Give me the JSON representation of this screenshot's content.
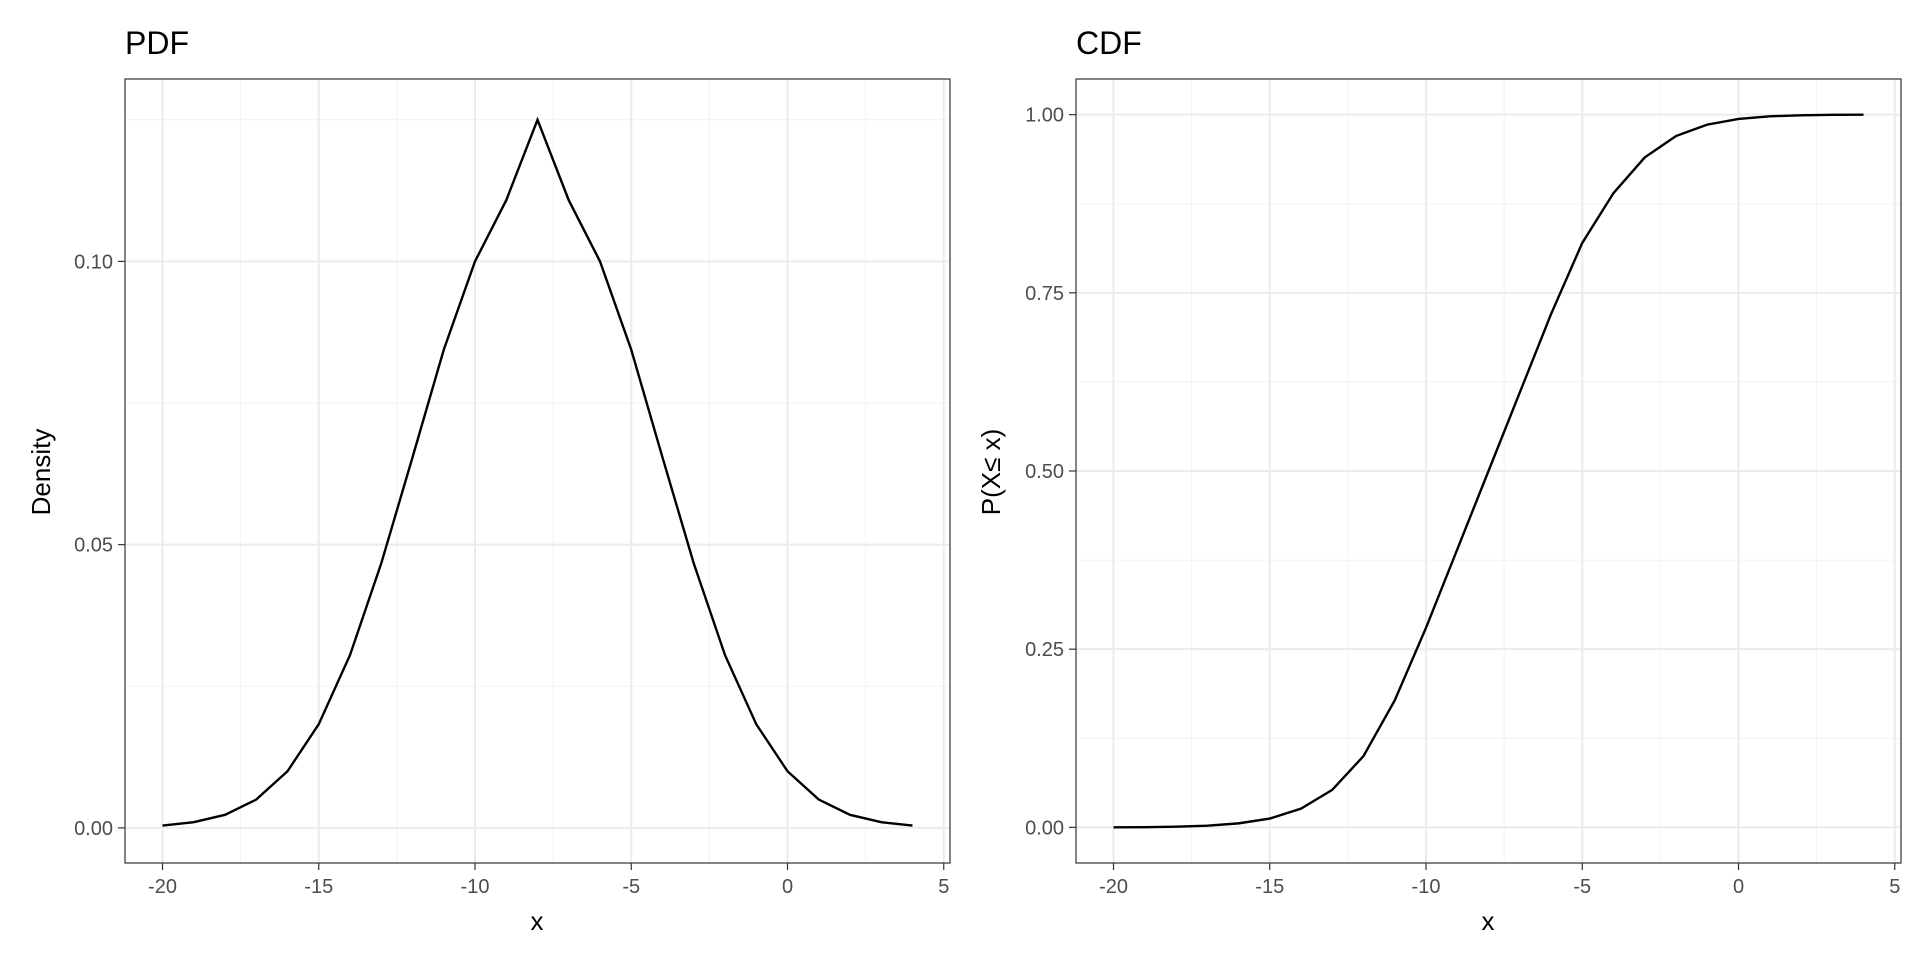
{
  "chart_data": [
    {
      "type": "line",
      "title": "PDF",
      "xlabel": "x",
      "ylabel": "Density",
      "xlim": [
        -21.2,
        5.2
      ],
      "ylim": [
        -0.0062,
        0.1322
      ],
      "xticks": [
        -20,
        -15,
        -10,
        -5,
        0,
        5
      ],
      "yticks": [
        0.0,
        0.05,
        0.1
      ],
      "xtick_labels": [
        "-20",
        "-15",
        "-10",
        "-5",
        "0",
        "5"
      ],
      "ytick_labels": [
        "0.00",
        "0.05",
        "0.10"
      ],
      "grid": true,
      "series": [
        {
          "color": "#000000",
          "x": [
            -20,
            -19,
            -18,
            -17,
            -16,
            -15,
            -14,
            -13,
            -12,
            -11,
            -10,
            -9,
            -8,
            -7,
            -6,
            -5,
            -4,
            -3,
            -2,
            -1,
            0,
            1,
            2,
            3,
            4
          ],
          "y": [
            0.0004,
            0.001,
            0.0023,
            0.005,
            0.01,
            0.0183,
            0.0305,
            0.0467,
            0.0654,
            0.0844,
            0.1,
            0.1108,
            0.125,
            0.1108,
            0.1,
            0.0844,
            0.0654,
            0.0467,
            0.0305,
            0.0183,
            0.01,
            0.005,
            0.0023,
            0.001,
            0.0004
          ]
        }
      ]
    },
    {
      "type": "line",
      "title": "CDF",
      "xlabel": "x",
      "ylabel": "P(X≤ x)",
      "xlim": [
        -21.2,
        5.2
      ],
      "ylim": [
        -0.05,
        1.05
      ],
      "xticks": [
        -20,
        -15,
        -10,
        -5,
        0,
        5
      ],
      "yticks": [
        0.0,
        0.25,
        0.5,
        0.75,
        1.0
      ],
      "xtick_labels": [
        "-20",
        "-15",
        "-10",
        "-5",
        "0",
        "5"
      ],
      "ytick_labels": [
        "0.00",
        "0.25",
        "0.50",
        "0.75",
        "1.00"
      ],
      "grid": true,
      "series": [
        {
          "color": "#000000",
          "x": [
            -20,
            -19,
            -18,
            -17,
            -16,
            -15,
            -14,
            -13,
            -12,
            -11,
            -10,
            -9,
            -8,
            -7,
            -6,
            -5,
            -4,
            -3,
            -2,
            -1,
            0,
            1,
            2,
            3,
            4
          ],
          "y": [
            0.0001,
            0.0003,
            0.0009,
            0.0023,
            0.0056,
            0.0124,
            0.0262,
            0.0526,
            0.1,
            0.1782,
            0.28,
            0.39,
            0.5,
            0.61,
            0.72,
            0.82,
            0.89,
            0.94,
            0.97,
            0.986,
            0.994,
            0.9977,
            0.9991,
            0.9997,
            0.9999
          ]
        }
      ]
    }
  ]
}
